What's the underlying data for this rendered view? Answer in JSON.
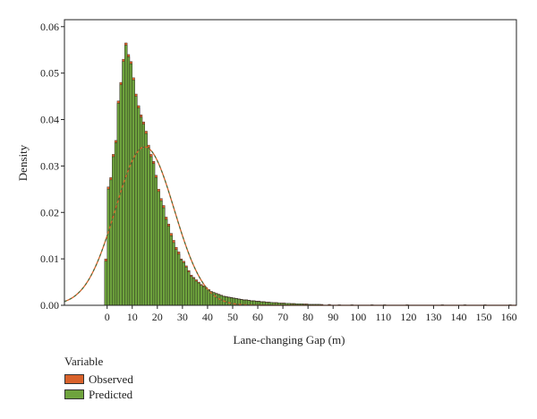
{
  "chart_data": {
    "type": "bar",
    "xlabel": "Lane-changing Gap (m)",
    "ylabel": "Density",
    "xlim": [
      -17,
      163
    ],
    "ylim": [
      0,
      0.0615
    ],
    "x_ticks": [
      0,
      10,
      20,
      30,
      40,
      50,
      60,
      70,
      80,
      90,
      100,
      110,
      120,
      130,
      140,
      150,
      160
    ],
    "y_ticks": [
      0.0,
      0.01,
      0.02,
      0.03,
      0.04,
      0.05,
      0.06
    ],
    "x_tick_labels": [
      "0",
      "10",
      "20",
      "30",
      "40",
      "50",
      "60",
      "70",
      "80",
      "90",
      "100",
      "110",
      "120",
      "130",
      "140",
      "150",
      "160"
    ],
    "y_tick_labels": [
      "0.00",
      "0.01",
      "0.02",
      "0.03",
      "0.04",
      "0.05",
      "0.06"
    ],
    "bin_width": 1,
    "bins_start": [
      -1,
      0,
      1,
      2,
      3,
      4,
      5,
      6,
      7,
      8,
      9,
      10,
      11,
      12,
      13,
      14,
      15,
      16,
      17,
      18,
      19,
      20,
      21,
      22,
      23,
      24,
      25,
      26,
      27,
      28,
      29,
      30,
      31,
      32,
      33,
      34,
      35,
      36,
      37,
      38,
      39,
      40,
      41,
      42,
      43,
      44,
      45,
      46,
      47,
      48,
      49,
      50,
      51,
      52,
      53,
      54,
      55,
      56,
      57,
      58,
      59,
      60,
      61,
      62,
      63,
      64,
      65,
      66,
      67,
      68,
      69,
      70,
      71,
      72,
      73,
      74,
      75,
      76,
      77,
      78,
      79,
      80,
      81,
      82,
      83,
      84,
      85,
      88,
      92,
      97,
      105,
      110,
      119,
      133,
      142,
      150,
      160
    ],
    "series": [
      {
        "name": "Observed",
        "color": "#d9622b",
        "values": [
          0.01,
          0.0255,
          0.0275,
          0.0325,
          0.0355,
          0.044,
          0.048,
          0.053,
          0.0565,
          0.054,
          0.0525,
          0.049,
          0.0455,
          0.043,
          0.041,
          0.0395,
          0.0375,
          0.0345,
          0.0325,
          0.031,
          0.028,
          0.025,
          0.023,
          0.0215,
          0.019,
          0.0175,
          0.0155,
          0.014,
          0.0125,
          0.0115,
          0.01,
          0.0095,
          0.0085,
          0.0075,
          0.0065,
          0.006,
          0.0055,
          0.005,
          0.0045,
          0.0042,
          0.0038,
          0.0034,
          0.003,
          0.0028,
          0.0026,
          0.0024,
          0.0022,
          0.002,
          0.0019,
          0.0018,
          0.0017,
          0.0016,
          0.0015,
          0.0014,
          0.0013,
          0.0012,
          0.0012,
          0.0011,
          0.001,
          0.001,
          0.0009,
          0.0009,
          0.0008,
          0.0008,
          0.0007,
          0.0007,
          0.0006,
          0.0006,
          0.0006,
          0.0005,
          0.0005,
          0.0005,
          0.0004,
          0.0004,
          0.0004,
          0.0004,
          0.0003,
          0.0003,
          0.0003,
          0.0003,
          0.0003,
          0.0002,
          0.0002,
          0.0002,
          0.0002,
          0.0002,
          0.0002,
          0.0002,
          0.0001,
          0.0001,
          0.0001,
          0.0001,
          0.0001,
          0.0001,
          0.0001,
          0.0001,
          0.0001
        ]
      },
      {
        "name": "Predicted",
        "color": "#6ea33d",
        "values": [
          0.0095,
          0.025,
          0.027,
          0.032,
          0.035,
          0.0435,
          0.0475,
          0.0525,
          0.056,
          0.0535,
          0.052,
          0.0485,
          0.045,
          0.0425,
          0.0405,
          0.039,
          0.037,
          0.034,
          0.032,
          0.0305,
          0.0275,
          0.0245,
          0.0225,
          0.021,
          0.0185,
          0.017,
          0.015,
          0.0135,
          0.012,
          0.011,
          0.0098,
          0.0092,
          0.0082,
          0.0072,
          0.0062,
          0.0058,
          0.0052,
          0.0048,
          0.0043,
          0.004,
          0.0036,
          0.0032,
          0.0029,
          0.0027,
          0.0025,
          0.0023,
          0.0021,
          0.0019,
          0.0018,
          0.0017,
          0.0016,
          0.0015,
          0.0014,
          0.0013,
          0.0012,
          0.0011,
          0.0011,
          0.001,
          0.0009,
          0.0009,
          0.0008,
          0.0008,
          0.0007,
          0.0007,
          0.0006,
          0.0006,
          0.0006,
          0.0005,
          0.0005,
          0.0005,
          0.0004,
          0.0004,
          0.0004,
          0.0004,
          0.0003,
          0.0003,
          0.0003,
          0.0003,
          0.0003,
          0.0002,
          0.0002,
          0.0002,
          0.0002,
          0.0002,
          0.0002,
          0.0002,
          0.0001,
          0.0001,
          0.0001,
          0.0001,
          0.0001,
          0.0001,
          0.0001,
          0.0001,
          0.0001,
          0.0001,
          0.0001
        ]
      }
    ],
    "fit_curves": [
      {
        "series": "Observed",
        "distribution": "normal",
        "mean": 15,
        "sd": 11.7,
        "color": "#d9622b",
        "style": "solid"
      },
      {
        "series": "Predicted",
        "distribution": "normal",
        "mean": 15,
        "sd": 11.7,
        "color": "#3c6e3c",
        "style": "dashed"
      }
    ],
    "legend": {
      "title": "Variable",
      "placement": "bottom-left",
      "entries": [
        "Observed",
        "Predicted"
      ]
    },
    "grid": false
  }
}
